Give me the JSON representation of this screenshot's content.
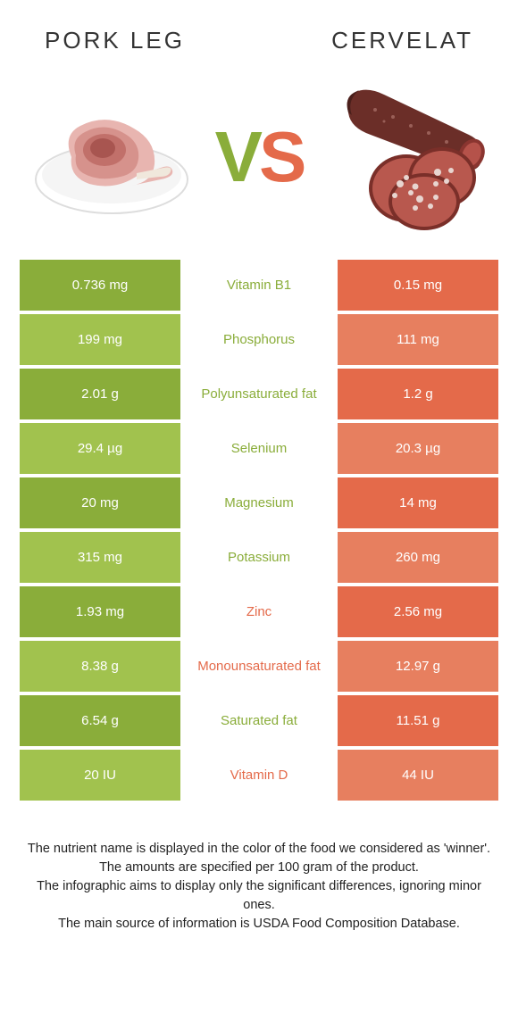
{
  "header": {
    "left_title": "Pork leg",
    "right_title": "Cervelat"
  },
  "vs": {
    "v": "V",
    "s": "S"
  },
  "colors": {
    "left_dark": "#8aad3a",
    "left_light": "#a1c24e",
    "right_dark": "#e46a4a",
    "right_light": "#e77f5f",
    "mid_green": "#8aad3a",
    "mid_orange": "#e46a4a"
  },
  "rows": [
    {
      "left": "0.736 mg",
      "label": "Vitamin B1",
      "right": "0.15 mg",
      "winner": "left"
    },
    {
      "left": "199 mg",
      "label": "Phosphorus",
      "right": "111 mg",
      "winner": "left"
    },
    {
      "left": "2.01 g",
      "label": "Polyunsaturated fat",
      "right": "1.2 g",
      "winner": "left"
    },
    {
      "left": "29.4 µg",
      "label": "Selenium",
      "right": "20.3 µg",
      "winner": "left"
    },
    {
      "left": "20 mg",
      "label": "Magnesium",
      "right": "14 mg",
      "winner": "left"
    },
    {
      "left": "315 mg",
      "label": "Potassium",
      "right": "260 mg",
      "winner": "left"
    },
    {
      "left": "1.93 mg",
      "label": "Zinc",
      "right": "2.56 mg",
      "winner": "right"
    },
    {
      "left": "8.38 g",
      "label": "Monounsaturated fat",
      "right": "12.97 g",
      "winner": "right"
    },
    {
      "left": "6.54 g",
      "label": "Saturated fat",
      "right": "11.51 g",
      "winner": "left"
    },
    {
      "left": "20 IU",
      "label": "Vitamin D",
      "right": "44 IU",
      "winner": "right"
    }
  ],
  "footnotes": [
    "The nutrient name is displayed in the color of the food we considered as 'winner'.",
    "The amounts are specified per 100 gram of the product.",
    "The infographic aims to display only the significant differences, ignoring minor ones.",
    "The main source of information is USDA Food Composition Database."
  ]
}
